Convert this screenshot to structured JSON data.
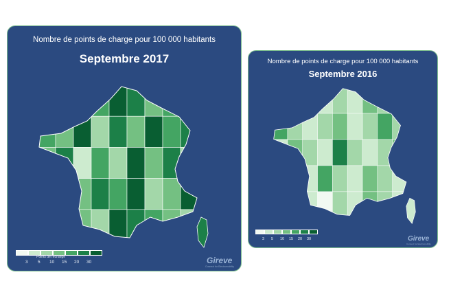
{
  "colors": {
    "panel_background": "#2b4a80",
    "panel_border": "#7fbf8f",
    "text": "#ffffff",
    "scale": [
      "#f2f9f2",
      "#cdebcf",
      "#a3d7a9",
      "#74c082",
      "#44a563",
      "#1c8048",
      "#095e32"
    ]
  },
  "maps": [
    {
      "subtitle": "Nombre de points de charge pour 100 000 habitants",
      "period": "Septembre 2017",
      "legend": {
        "title": "Points de recharge",
        "ticks": [
          "3",
          "5",
          "10",
          "15",
          "20",
          "30"
        ]
      },
      "logo": {
        "text": "Gireve",
        "tagline": "Connect for Electromobility"
      },
      "region_levels": [
        5,
        2,
        6,
        4,
        6,
        5,
        3,
        4,
        6,
        4,
        3,
        6,
        2,
        5,
        3,
        6,
        4,
        5,
        3,
        5,
        1,
        4,
        2,
        6,
        3,
        5,
        2,
        4,
        6,
        3,
        5,
        4,
        6,
        2,
        3,
        6,
        4,
        5,
        3,
        2,
        6,
        5,
        4,
        3,
        2
      ]
    },
    {
      "subtitle": "Nombre de points de charge pour 100 000 habitants",
      "period": "Septembre 2016",
      "legend": {
        "title": "",
        "ticks": [
          "3",
          "5",
          "10",
          "15",
          "20",
          "30"
        ]
      },
      "logo": {
        "text": "Gireve",
        "tagline": "Connect for Electromobility"
      },
      "region_levels": [
        1,
        2,
        3,
        1,
        2,
        1,
        3,
        2,
        1,
        4,
        2,
        1,
        2,
        3,
        1,
        2,
        4,
        2,
        1,
        3,
        2,
        1,
        5,
        2,
        1,
        2,
        3,
        1,
        2,
        1,
        4,
        2,
        1,
        3,
        2,
        1,
        2,
        3,
        1,
        0,
        2,
        1,
        3,
        2,
        1
      ]
    }
  ]
}
